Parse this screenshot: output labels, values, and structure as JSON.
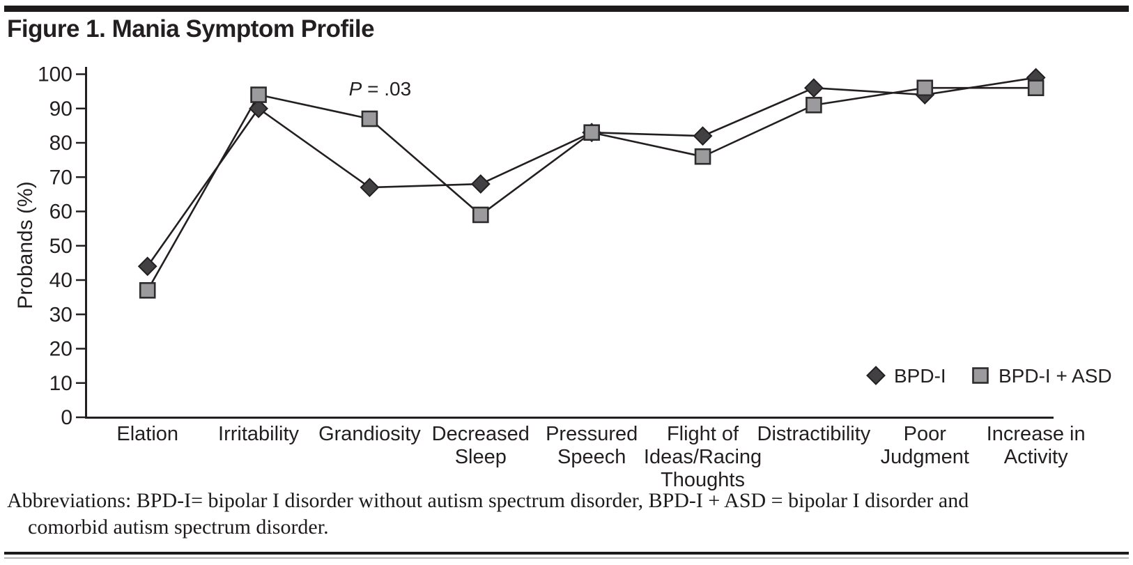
{
  "figure": {
    "title": "Figure 1. Mania Symptom Profile",
    "footnote_line1": "Abbreviations: BPD-I= bipolar I disorder without autism spectrum disorder, BPD-I + ASD = bipolar I disorder and",
    "footnote_line2": "comorbid autism spectrum disorder."
  },
  "colors": {
    "ink": "#231f20",
    "diamond_fill": "#414042",
    "square_fill": "#9b9b9d",
    "square_stroke": "#2e2b2c",
    "rule_gray": "#b2b2b2"
  },
  "chart_data": {
    "type": "line",
    "title": "Figure 1. Mania Symptom Profile",
    "xlabel": "",
    "ylabel": "Probands (%)",
    "ylim": [
      0,
      100
    ],
    "ytick_step": 10,
    "grid": false,
    "legend_position": "inside-bottom-right",
    "categories": [
      "Elation",
      "Irritability",
      "Grandiosity",
      "Decreased Sleep",
      "Pressured Speech",
      "Flight of Ideas/Racing Thoughts",
      "Distractibility",
      "Poor Judgment",
      "Increase in Activity"
    ],
    "category_label_lines": [
      [
        "Elation"
      ],
      [
        "Irritability"
      ],
      [
        "Grandiosity"
      ],
      [
        "Decreased",
        "Sleep"
      ],
      [
        "Pressured",
        "Speech"
      ],
      [
        "Flight of",
        "Ideas/Racing",
        "Thoughts"
      ],
      [
        "Distractibility"
      ],
      [
        "Poor",
        "Judgment"
      ],
      [
        "Increase in",
        "Activity"
      ]
    ],
    "series": [
      {
        "name": "BPD-I",
        "marker": "diamond",
        "color": "#414042",
        "values": [
          44,
          90,
          67,
          68,
          83,
          82,
          96,
          94,
          99
        ]
      },
      {
        "name": "BPD-I + ASD",
        "marker": "square",
        "color": "#9b9b9d",
        "values": [
          37,
          94,
          87,
          59,
          83,
          76,
          91,
          96,
          96
        ]
      }
    ],
    "annotations": [
      {
        "label": "P = .03",
        "italic_part": "P",
        "rest_part": " = .03",
        "x_category": "Grandiosity"
      }
    ]
  }
}
